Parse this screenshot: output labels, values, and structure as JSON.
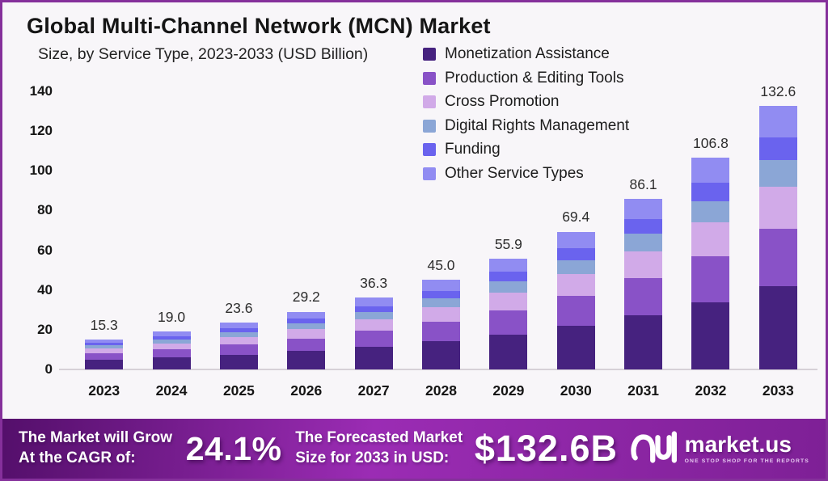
{
  "card": {
    "border_color": "#85309b",
    "background": "#f8f6f9"
  },
  "chart_data": {
    "type": "bar",
    "stacked": true,
    "title": "Global Multi-Channel Network (MCN) Market",
    "subtitle": "Size, by Service Type, 2023-2033 (USD Billion)",
    "unit": "USD Billion",
    "categories": [
      "2023",
      "2024",
      "2025",
      "2026",
      "2027",
      "2028",
      "2029",
      "2030",
      "2031",
      "2032",
      "2033"
    ],
    "totals": [
      "15.3",
      "19.0",
      "23.6",
      "29.2",
      "36.3",
      "45.0",
      "55.9",
      "69.4",
      "86.1",
      "106.8",
      "132.6"
    ],
    "ylim": [
      0,
      140
    ],
    "yticks": [
      0,
      20,
      40,
      60,
      80,
      100,
      120,
      140
    ],
    "grid": false,
    "legend_position": "top-right",
    "series": [
      {
        "name": "Monetization Assistance",
        "color": "#46227f",
        "values": [
          4.8,
          6.0,
          7.4,
          9.2,
          11.4,
          14.2,
          17.6,
          21.9,
          27.1,
          33.6,
          41.8
        ]
      },
      {
        "name": "Production & Editing Tools",
        "color": "#8952c7",
        "values": [
          3.4,
          4.2,
          5.2,
          6.4,
          8.0,
          9.9,
          12.3,
          15.3,
          18.9,
          23.5,
          29.2
        ]
      },
      {
        "name": "Cross Promotion",
        "color": "#d1aae8",
        "values": [
          2.4,
          3.0,
          3.7,
          4.6,
          5.7,
          7.1,
          8.8,
          11.0,
          13.6,
          16.9,
          21.0
        ]
      },
      {
        "name": "Digital Rights Management",
        "color": "#8ba6d6",
        "values": [
          1.5,
          1.9,
          2.4,
          2.9,
          3.6,
          4.5,
          5.6,
          6.9,
          8.6,
          10.7,
          13.3
        ]
      },
      {
        "name": "Funding",
        "color": "#6a63ee",
        "values": [
          1.3,
          1.7,
          2.1,
          2.5,
          3.2,
          3.9,
          4.9,
          6.0,
          7.5,
          9.3,
          11.5
        ]
      },
      {
        "name": "Other Service Types",
        "color": "#918cf2",
        "values": [
          1.8,
          2.3,
          2.8,
          3.5,
          4.4,
          5.4,
          6.7,
          8.3,
          10.3,
          12.8,
          15.9
        ]
      }
    ]
  },
  "banner": {
    "cagr_label_line1": "The Market will Grow",
    "cagr_label_line2": "At the CAGR of:",
    "cagr_value": "24.1%",
    "forecast_label_line1": "The Forecasted Market",
    "forecast_label_line2": "Size for 2033 in USD:",
    "forecast_value": "$132.6B",
    "logo_text": "market.us",
    "logo_tagline": "ONE STOP SHOP FOR THE REPORTS",
    "gradient": [
      "#540f6b",
      "#9b2cb4",
      "#7e2096"
    ]
  }
}
